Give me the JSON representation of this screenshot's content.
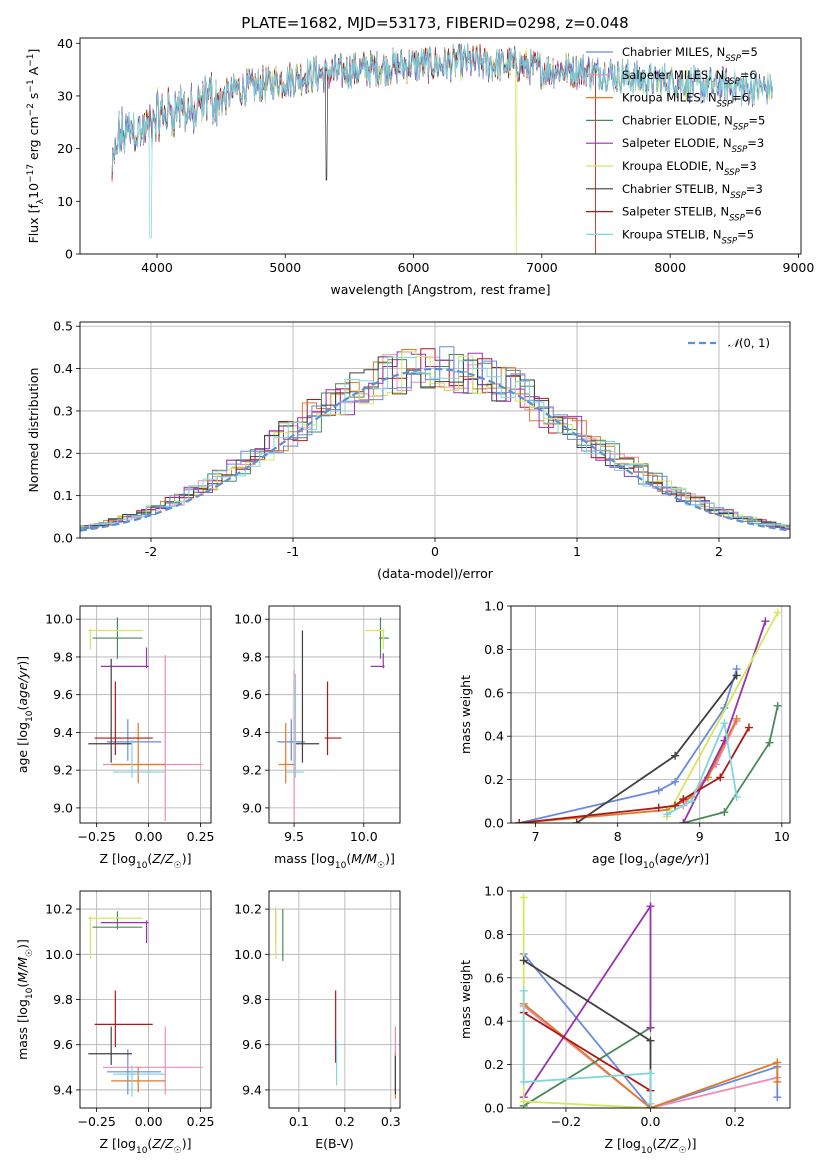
{
  "figure": {
    "title": "PLATE=1682, MJD=53173, FIBERID=0298, z=0.048"
  },
  "models": [
    {
      "name": "Chabrier MILES, N$_{SSP}$=5",
      "color": "#6a8ae0"
    },
    {
      "name": "Salpeter MILES, N$_{SSP}$=6",
      "color": "#f08cb4"
    },
    {
      "name": "Kroupa MILES, N$_{SSP}$=6",
      "color": "#e07a28"
    },
    {
      "name": "Chabrier ELODIE, N$_{SSP}$=5",
      "color": "#4a8a5a"
    },
    {
      "name": "Salpeter ELODIE, N$_{SSP}$=3",
      "color": "#9b30b0"
    },
    {
      "name": "Kroupa ELODIE, N$_{SSP}$=3",
      "color": "#d4e85a"
    },
    {
      "name": "Chabrier STELIB, N$_{SSP}$=3",
      "color": "#404040"
    },
    {
      "name": "Salpeter STELIB, N$_{SSP}$=6",
      "color": "#b01818"
    },
    {
      "name": "Kroupa STELIB, N$_{SSP}$=5",
      "color": "#7fd6dc"
    }
  ],
  "legend_labels": [
    {
      "pre": "Chabrier MILES, N",
      "sub": "SSP",
      "post": "=5"
    },
    {
      "pre": "Salpeter MILES, N",
      "sub": "SSP",
      "post": "=6"
    },
    {
      "pre": "Kroupa MILES, N",
      "sub": "SSP",
      "post": "=6"
    },
    {
      "pre": "Chabrier ELODIE, N",
      "sub": "SSP",
      "post": "=5"
    },
    {
      "pre": "Salpeter ELODIE, N",
      "sub": "SSP",
      "post": "=3"
    },
    {
      "pre": "Kroupa ELODIE, N",
      "sub": "SSP",
      "post": "=3"
    },
    {
      "pre": "Chabrier STELIB, N",
      "sub": "SSP",
      "post": "=3"
    },
    {
      "pre": "Salpeter STELIB, N",
      "sub": "SSP",
      "post": "=6"
    },
    {
      "pre": "Kroupa STELIB, N",
      "sub": "SSP",
      "post": "=5"
    }
  ],
  "chart_data": [
    {
      "id": "spectrum",
      "type": "line",
      "xlabel": "wavelength [Angstrom, rest frame]",
      "ylabel": "Flux [fλ10⁻¹⁷ erg cm⁻² s⁻¹ A⁻¹]",
      "xlim": [
        3400,
        9020
      ],
      "ylim": [
        0,
        41
      ],
      "xticks": [
        4000,
        5000,
        6000,
        7000,
        8000,
        9000
      ],
      "yticks": [
        0,
        10,
        20,
        30,
        40
      ],
      "grid": false,
      "legend_position": "top-right",
      "data_anchors": {
        "x": [
          3650,
          3700,
          3800,
          3900,
          4000,
          4100,
          4200,
          4300,
          4400,
          4500,
          4600,
          4800,
          5000,
          5200,
          5400,
          5600,
          5800,
          6000,
          6200,
          6400,
          6600,
          6800,
          7000,
          7200,
          7400,
          7600,
          7800,
          8000,
          8200,
          8400,
          8600,
          8800
        ],
        "y": [
          15,
          22,
          24,
          23,
          26,
          27,
          28,
          26,
          30,
          29,
          31,
          32,
          33,
          34,
          34.5,
          35,
          35.5,
          36,
          36,
          36.5,
          36,
          36,
          35,
          35,
          34.5,
          34,
          33,
          33,
          32,
          32,
          31.5,
          31.5
        ]
      }
    },
    {
      "id": "residuals",
      "type": "histogram",
      "xlabel": "(data-model)/error",
      "ylabel": "Normed distribution",
      "xlim": [
        -2.5,
        2.5
      ],
      "ylim": [
        0,
        0.51
      ],
      "xticks": [
        -2,
        -1,
        0,
        1,
        2
      ],
      "yticks": [
        0,
        0.1,
        0.2,
        0.3,
        0.4,
        0.5
      ],
      "ytick_labels": [
        "0.0",
        "0.1",
        "0.2",
        "0.3",
        "0.4",
        "0.5"
      ],
      "grid": true,
      "bin_width": 0.1,
      "reference_curve": {
        "name": "N(0,1)",
        "sigma": 1,
        "style": "dashed"
      },
      "legend_position": "top-right"
    },
    {
      "id": "age-vs-Z",
      "type": "errorbar",
      "xlabel": "Z [log10(Z/Z☉)]",
      "ylabel": "age [log10(age/yr)]",
      "xlim": [
        -0.33,
        0.3
      ],
      "ylim": [
        8.92,
        10.07
      ],
      "xticks": [
        -0.25,
        0.0,
        0.25
      ],
      "xtick_labels": [
        "−0.25",
        "0.00",
        "0.25"
      ],
      "yticks": [
        9.0,
        9.2,
        9.4,
        9.6,
        9.8,
        10.0
      ],
      "ytick_labels": [
        "9.0",
        "9.2",
        "9.4",
        "9.6",
        "9.8",
        "10.0"
      ],
      "grid": true,
      "points": [
        {
          "model": 0,
          "x": -0.1,
          "xerr": [
            0.1,
            0.16
          ],
          "y": 9.35,
          "yerr": [
            0.1,
            0.12
          ]
        },
        {
          "model": 1,
          "x": 0.08,
          "xerr": [
            0.3,
            0.18
          ],
          "y": 9.23,
          "yerr": [
            0.3,
            0.58
          ]
        },
        {
          "model": 2,
          "x": -0.05,
          "xerr": [
            0.13,
            0.13
          ],
          "y": 9.23,
          "yerr": [
            0.1,
            0.22
          ]
        },
        {
          "model": 3,
          "x": -0.15,
          "xerr": [
            0.12,
            0.12
          ],
          "y": 9.9,
          "yerr": [
            0.11,
            0.11
          ]
        },
        {
          "model": 4,
          "x": -0.01,
          "xerr": [
            0.22,
            0.01
          ],
          "y": 9.75,
          "yerr": [
            0.01,
            0.1
          ]
        },
        {
          "model": 5,
          "x": -0.28,
          "xerr": [
            0.01,
            0.25
          ],
          "y": 9.94,
          "yerr": [
            0.1,
            0.01
          ]
        },
        {
          "model": 6,
          "x": -0.18,
          "xerr": [
            0.11,
            0.1
          ],
          "y": 9.34,
          "yerr": [
            0.1,
            0.45
          ]
        },
        {
          "model": 7,
          "x": -0.16,
          "xerr": [
            0.1,
            0.18
          ],
          "y": 9.37,
          "yerr": [
            0.09,
            0.3
          ]
        },
        {
          "model": 8,
          "x": -0.08,
          "xerr": [
            0.09,
            0.16
          ],
          "y": 9.19,
          "yerr": [
            0.03,
            0.17
          ]
        }
      ]
    },
    {
      "id": "age-vs-mass",
      "type": "errorbar",
      "xlabel": "mass [log10(M/M☉)]",
      "ylabel": "",
      "xlim": [
        9.32,
        10.26
      ],
      "ylim": [
        8.92,
        10.07
      ],
      "xticks": [
        9.5,
        10.0
      ],
      "xtick_labels": [
        "9.5",
        "10.0"
      ],
      "yticks": [
        9.0,
        9.2,
        9.4,
        9.6,
        9.8,
        10.0
      ],
      "ytick_labels": [
        "9.0",
        "9.2",
        "9.4",
        "9.6",
        "9.8",
        "10.0"
      ],
      "grid": true,
      "points": [
        {
          "model": 0,
          "x": 9.48,
          "xerr": [
            0.1,
            0.1
          ],
          "y": 9.35,
          "yerr": [
            0.1,
            0.12
          ]
        },
        {
          "model": 1,
          "x": 9.5,
          "xerr": [
            0.01,
            0.01
          ],
          "y": 9.23,
          "yerr": [
            0.3,
            0.5
          ]
        },
        {
          "model": 2,
          "x": 9.44,
          "xerr": [
            0.05,
            0.06
          ],
          "y": 9.23,
          "yerr": [
            0.1,
            0.22
          ]
        },
        {
          "model": 3,
          "x": 10.12,
          "xerr": [
            0.01,
            0.06
          ],
          "y": 9.9,
          "yerr": [
            0.11,
            0.11
          ]
        },
        {
          "model": 4,
          "x": 10.14,
          "xerr": [
            0.09,
            0.01
          ],
          "y": 9.75,
          "yerr": [
            0.01,
            0.07
          ]
        },
        {
          "model": 5,
          "x": 10.14,
          "xerr": [
            0.13,
            0.01
          ],
          "y": 9.94,
          "yerr": [
            0.1,
            0.01
          ]
        },
        {
          "model": 6,
          "x": 9.56,
          "xerr": [
            0.05,
            0.12
          ],
          "y": 9.34,
          "yerr": [
            0.1,
            0.6
          ]
        },
        {
          "model": 7,
          "x": 9.74,
          "xerr": [
            0.02,
            0.1
          ],
          "y": 9.37,
          "yerr": [
            0.09,
            0.3
          ]
        },
        {
          "model": 8,
          "x": 9.51,
          "xerr": [
            0.07,
            0.06
          ],
          "y": 9.19,
          "yerr": [
            0.03,
            0.52
          ]
        }
      ]
    },
    {
      "id": "weight-vs-age",
      "type": "line",
      "xlabel": "age [log10(age/yr)]",
      "ylabel": "mass weight",
      "xlim": [
        6.7,
        10.1
      ],
      "ylim": [
        0,
        1.0
      ],
      "xticks": [
        7,
        8,
        9,
        10
      ],
      "yticks": [
        0,
        0.2,
        0.4,
        0.6,
        0.8,
        1.0
      ],
      "ytick_labels": [
        "0.0",
        "0.2",
        "0.4",
        "0.6",
        "0.8",
        "1.0"
      ],
      "grid": true,
      "series": [
        {
          "model": 0,
          "x": [
            6.8,
            8.5,
            8.7,
            9.3,
            9.45
          ],
          "y": [
            0.0,
            0.15,
            0.19,
            0.53,
            0.71
          ]
        },
        {
          "model": 1,
          "x": [
            8.8,
            9.2,
            9.45
          ],
          "y": [
            0.08,
            0.27,
            0.47
          ]
        },
        {
          "model": 2,
          "x": [
            6.8,
            8.6,
            8.9,
            9.1,
            9.45
          ],
          "y": [
            0.0,
            0.06,
            0.12,
            0.21,
            0.48
          ]
        },
        {
          "model": 3,
          "x": [
            8.8,
            9.3,
            9.85,
            9.95
          ],
          "y": [
            0.0,
            0.05,
            0.37,
            0.54
          ]
        },
        {
          "model": 4,
          "x": [
            8.8,
            9.3,
            9.8
          ],
          "y": [
            0.0,
            0.38,
            0.93
          ]
        },
        {
          "model": 5,
          "x": [
            8.6,
            9.95
          ],
          "y": [
            0.03,
            0.97
          ]
        },
        {
          "model": 6,
          "x": [
            7.5,
            8.7,
            9.45
          ],
          "y": [
            0.0,
            0.31,
            0.68
          ]
        },
        {
          "model": 7,
          "x": [
            6.8,
            8.5,
            8.7,
            8.8,
            9.25,
            9.6
          ],
          "y": [
            0.0,
            0.07,
            0.08,
            0.11,
            0.21,
            0.44
          ]
        },
        {
          "model": 8,
          "x": [
            8.6,
            8.9,
            9.3,
            9.45
          ],
          "y": [
            0.04,
            0.1,
            0.46,
            0.12
          ]
        }
      ]
    },
    {
      "id": "mass-vs-Z",
      "type": "errorbar",
      "xlabel": "Z [log10(Z/Z☉)]",
      "ylabel": "mass [log10(M/M☉)]",
      "xlim": [
        -0.33,
        0.3
      ],
      "ylim": [
        9.32,
        10.28
      ],
      "xticks": [
        -0.25,
        0.0,
        0.25
      ],
      "xtick_labels": [
        "−0.25",
        "0.00",
        "0.25"
      ],
      "yticks": [
        9.4,
        9.6,
        9.8,
        10.0,
        10.2
      ],
      "ytick_labels": [
        "9.4",
        "9.6",
        "9.8",
        "10.0",
        "10.2"
      ],
      "grid": true,
      "points": [
        {
          "model": 0,
          "x": -0.1,
          "xerr": [
            0.1,
            0.16
          ],
          "y": 9.48,
          "yerr": [
            0.1,
            0.1
          ]
        },
        {
          "model": 1,
          "x": 0.08,
          "xerr": [
            0.3,
            0.18
          ],
          "y": 9.5,
          "yerr": [
            0.12,
            0.18
          ]
        },
        {
          "model": 2,
          "x": -0.05,
          "xerr": [
            0.13,
            0.13
          ],
          "y": 9.44,
          "yerr": [
            0.05,
            0.06
          ]
        },
        {
          "model": 3,
          "x": -0.15,
          "xerr": [
            0.12,
            0.12
          ],
          "y": 10.12,
          "yerr": [
            0.01,
            0.07
          ]
        },
        {
          "model": 4,
          "x": -0.01,
          "xerr": [
            0.22,
            0.01
          ],
          "y": 10.14,
          "yerr": [
            0.09,
            0.01
          ]
        },
        {
          "model": 5,
          "x": -0.28,
          "xerr": [
            0.01,
            0.25
          ],
          "y": 10.16,
          "yerr": [
            0.18,
            0.01
          ]
        },
        {
          "model": 6,
          "x": -0.18,
          "xerr": [
            0.11,
            0.1
          ],
          "y": 9.56,
          "yerr": [
            0.05,
            0.12
          ]
        },
        {
          "model": 7,
          "x": -0.16,
          "xerr": [
            0.1,
            0.18
          ],
          "y": 9.69,
          "yerr": [
            0.1,
            0.15
          ]
        },
        {
          "model": 8,
          "x": -0.08,
          "xerr": [
            0.09,
            0.16
          ],
          "y": 9.47,
          "yerr": [
            0.1,
            0.04
          ]
        }
      ]
    },
    {
      "id": "mass-vs-EBV",
      "type": "errorbar",
      "xlabel": "E(B-V)",
      "ylabel": "",
      "xlim": [
        0.035,
        0.32
      ],
      "ylim": [
        9.32,
        10.28
      ],
      "xticks": [
        0.1,
        0.2,
        0.3
      ],
      "xtick_labels": [
        "0.1",
        "0.2",
        "0.3"
      ],
      "yticks": [
        9.4,
        9.6,
        9.8,
        10.0,
        10.2
      ],
      "ytick_labels": [
        "9.4",
        "9.6",
        "9.8",
        "10.0",
        "10.2"
      ],
      "grid": true,
      "points": [
        {
          "model": 0,
          "x": 0.31,
          "xerr": [
            0,
            0
          ],
          "y": 9.48,
          "yerr": [
            0.1,
            0.1
          ]
        },
        {
          "model": 1,
          "x": 0.31,
          "xerr": [
            0,
            0
          ],
          "y": 9.52,
          "yerr": [
            0.12,
            0.16
          ]
        },
        {
          "model": 2,
          "x": 0.31,
          "xerr": [
            0,
            0
          ],
          "y": 9.46,
          "yerr": [
            0.1,
            0.1
          ]
        },
        {
          "model": 3,
          "x": 0.065,
          "xerr": [
            0,
            0
          ],
          "y": 10.12,
          "yerr": [
            0.15,
            0.08
          ]
        },
        {
          "model": 4,
          "x": 0.05,
          "xerr": [
            0,
            0
          ],
          "y": 10.14,
          "yerr": [
            0.09,
            0.06
          ]
        },
        {
          "model": 5,
          "x": 0.05,
          "xerr": [
            0,
            0
          ],
          "y": 10.16,
          "yerr": [
            0.18,
            0.05
          ]
        },
        {
          "model": 6,
          "x": 0.31,
          "xerr": [
            0,
            0
          ],
          "y": 9.5,
          "yerr": [
            0.12,
            0.05
          ]
        },
        {
          "model": 7,
          "x": 0.18,
          "xerr": [
            0,
            0
          ],
          "y": 9.72,
          "yerr": [
            0.2,
            0.12
          ]
        },
        {
          "model": 8,
          "x": 0.182,
          "xerr": [
            0,
            0
          ],
          "y": 9.5,
          "yerr": [
            0.08,
            0.12
          ]
        }
      ]
    },
    {
      "id": "weight-vs-Z",
      "type": "line",
      "xlabel": "Z [log10(Z/Z☉)]",
      "ylabel": "mass weight",
      "xlim": [
        -0.33,
        0.33
      ],
      "ylim": [
        0,
        1.0
      ],
      "xticks": [
        -0.2,
        0.0,
        0.2
      ],
      "xtick_labels": [
        "−0.2",
        "0.0",
        "0.2"
      ],
      "yticks": [
        0,
        0.2,
        0.4,
        0.6,
        0.8,
        1.0
      ],
      "ytick_labels": [
        "0.0",
        "0.2",
        "0.4",
        "0.6",
        "0.8",
        "1.0"
      ],
      "grid": true,
      "series": [
        {
          "model": 0,
          "x": [
            -0.3,
            0.0,
            0.3,
            0.3
          ],
          "y": [
            0.71,
            0.0,
            0.19,
            0.05
          ]
        },
        {
          "model": 1,
          "x": [
            -0.3,
            0.0,
            0.3
          ],
          "y": [
            0.47,
            0.0,
            0.14
          ]
        },
        {
          "model": 2,
          "x": [
            -0.3,
            0.0,
            0.3,
            0.3
          ],
          "y": [
            0.48,
            0.0,
            0.21,
            0.12
          ]
        },
        {
          "model": 3,
          "x": [
            -0.3,
            0.0
          ],
          "y": [
            0.01,
            0.37
          ]
        },
        {
          "model": 4,
          "x": [
            -0.3,
            0.0,
            0.0
          ],
          "y": [
            0.05,
            0.93,
            0.37
          ]
        },
        {
          "model": 5,
          "x": [
            -0.3,
            -0.3,
            0.0
          ],
          "y": [
            0.97,
            0.03,
            0.0
          ]
        },
        {
          "model": 6,
          "x": [
            -0.3,
            0.0,
            0.0
          ],
          "y": [
            0.68,
            0.31,
            0.0
          ]
        },
        {
          "model": 7,
          "x": [
            -0.3,
            0.0,
            0.0
          ],
          "y": [
            0.44,
            0.08,
            0.0
          ]
        },
        {
          "model": 8,
          "x": [
            -0.3,
            -0.3,
            0.0,
            0.0
          ],
          "y": [
            0.54,
            0.12,
            0.16,
            0.02
          ]
        }
      ]
    }
  ]
}
